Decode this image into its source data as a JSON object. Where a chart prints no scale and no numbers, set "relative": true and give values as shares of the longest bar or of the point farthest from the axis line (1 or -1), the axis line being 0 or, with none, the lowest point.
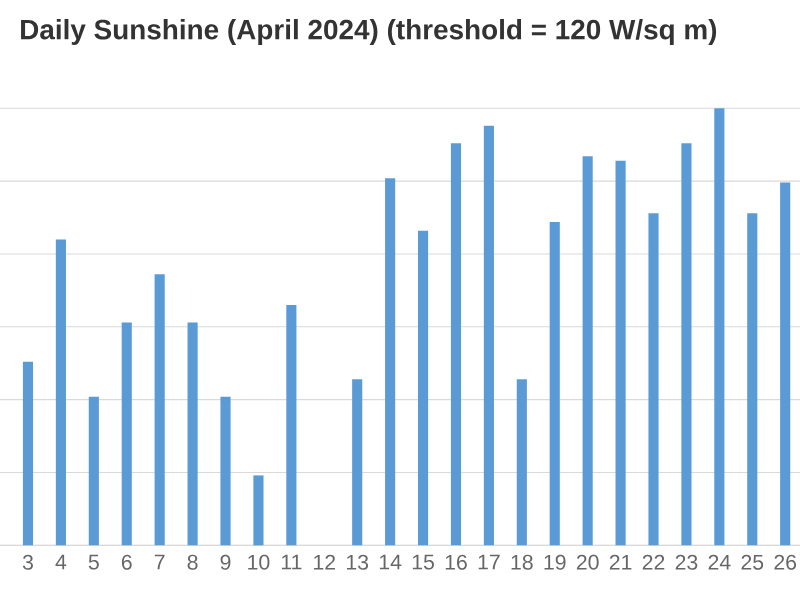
{
  "chart_data": {
    "type": "bar",
    "title": "Daily Sunshine (April 2024) (threshold = 120 W/sq m)",
    "categories": [
      "3",
      "4",
      "5",
      "6",
      "7",
      "8",
      "9",
      "10",
      "11",
      "12",
      "13",
      "14",
      "15",
      "16",
      "17",
      "18",
      "19",
      "20",
      "21",
      "22",
      "23",
      "24",
      "25",
      "26"
    ],
    "values": [
      0.42,
      0.7,
      0.34,
      0.51,
      0.62,
      0.51,
      0.34,
      0.16,
      0.55,
      0,
      0.38,
      0.84,
      0.72,
      0.92,
      0.96,
      0.38,
      0.74,
      0.89,
      0.88,
      0.76,
      0.92,
      1,
      0.76,
      0.83
    ],
    "color": "#5b9bd5",
    "relative": true,
    "grid": "y"
  }
}
